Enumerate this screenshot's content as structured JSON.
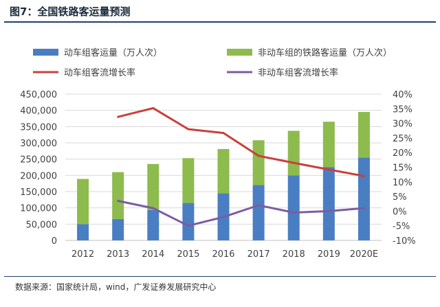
{
  "header": {
    "title": "图7：全国铁路客运量预测"
  },
  "footer": {
    "source": "数据来源：国家统计局，wind，广发证券发展研究中心"
  },
  "chart_data": {
    "type": "bar",
    "stacked": true,
    "title": "",
    "xlabel": "",
    "ylabel": "",
    "categories": [
      "2012",
      "2013",
      "2014",
      "2015",
      "2016",
      "2017",
      "2018",
      "2019",
      "2020E"
    ],
    "ylim": [
      0,
      450000
    ],
    "y_ticks": [
      "0",
      "50,000",
      "100,000",
      "150,000",
      "200,000",
      "250,000",
      "300,000",
      "350,000",
      "400,000",
      "450,000"
    ],
    "y2lim": [
      -10,
      40
    ],
    "y2_ticks": [
      "-10%",
      "-5%",
      "0%",
      "5%",
      "10%",
      "15%",
      "20%",
      "25%",
      "30%",
      "35%",
      "40%"
    ],
    "grid": true,
    "legend_position": "top",
    "series": [
      {
        "name": "动车组客运量（万人次）",
        "type": "bar",
        "axis": "left",
        "color": "#4a7ec2",
        "values": [
          50000,
          66000,
          93000,
          115000,
          145000,
          170000,
          200000,
          225000,
          255000
        ]
      },
      {
        "name": "非动车组的铁路客运量（万人次）",
        "type": "bar",
        "axis": "left",
        "color": "#8dbb4d",
        "values": [
          139000,
          144000,
          142000,
          138000,
          136000,
          138000,
          137000,
          140000,
          140000
        ]
      },
      {
        "name": "动车组客流增长率",
        "type": "line",
        "axis": "right",
        "color": "#c9403a",
        "values": [
          null,
          32.2,
          35.2,
          28.0,
          26.7,
          18.9,
          16.5,
          14.2,
          12.0
        ]
      },
      {
        "name": "非动车组客流增长率",
        "type": "line",
        "axis": "right",
        "color": "#7b5ba6",
        "values": [
          null,
          3.5,
          1.0,
          -5.0,
          -2.0,
          2.0,
          -0.5,
          0.0,
          1.0
        ]
      }
    ]
  }
}
